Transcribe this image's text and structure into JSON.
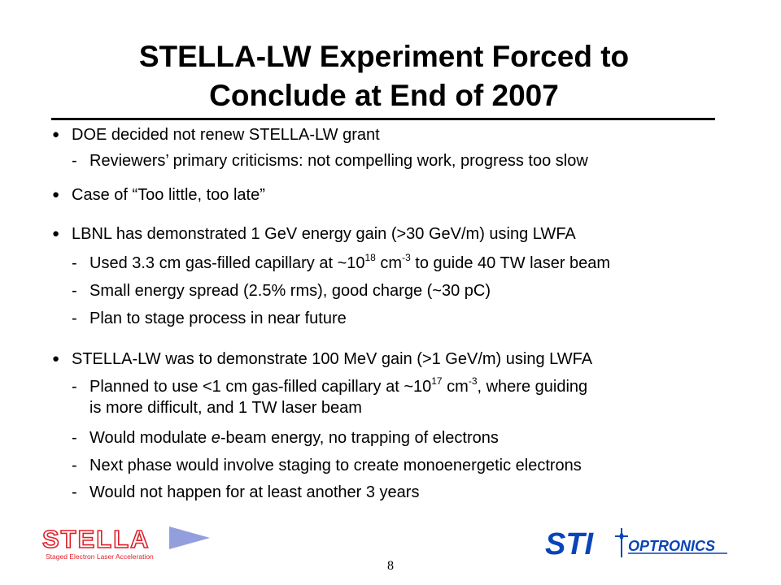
{
  "slide": {
    "title_line1": "STELLA-LW Experiment Forced to",
    "title_line2": "Conclude at End of 2007",
    "page_number": "8"
  },
  "bullets": {
    "b1": "DOE decided not renew STELLA-LW grant",
    "b1_sub1": "Reviewers’ primary criticisms: not compelling work, progress too slow",
    "b2": "Case of “Too little, too late”",
    "b3": "LBNL has demonstrated 1 GeV energy gain (>30 GeV/m) using LWFA",
    "b3_sub1_a": "Used 3.3 cm gas-filled capillary at ~10",
    "b3_sub1_exp1": "18",
    "b3_sub1_b": " cm",
    "b3_sub1_exp2": "-3",
    "b3_sub1_c": " to guide 40 TW laser beam",
    "b3_sub2": "Small energy spread (2.5% rms), good charge (~30 pC)",
    "b3_sub3": "Plan to stage process in near future",
    "b4": "STELLA-LW was to demonstrate 100 MeV gain (>1 GeV/m) using LWFA",
    "b4_sub1_a": "Planned to use <1 cm gas-filled capillary at ~10",
    "b4_sub1_exp1": "17",
    "b4_sub1_b": " cm",
    "b4_sub1_exp2": "-3",
    "b4_sub1_c": ", where guiding",
    "b4_sub1_cont": "is more difficult, and 1 TW laser beam",
    "b4_sub2_a": "Would modulate ",
    "b4_sub2_em": "e",
    "b4_sub2_b": "-beam energy, no trapping of electrons",
    "b4_sub3": "Next phase would involve staging to create monoenergetic electrons",
    "b4_sub4": "Would not happen for at least another 3 years"
  },
  "symbols": {
    "bullet": "●",
    "dash": "-"
  },
  "logos": {
    "stella_text": "STELLA",
    "stella_subtitle": "Staged Electron Laser Acceleration",
    "sti_text": "STI",
    "sti_sub": "OPTRONICS"
  },
  "colors": {
    "stella_red": "#e0202a",
    "stella_blue": "#6f7fd0",
    "sti_blue": "#0a44b8"
  }
}
